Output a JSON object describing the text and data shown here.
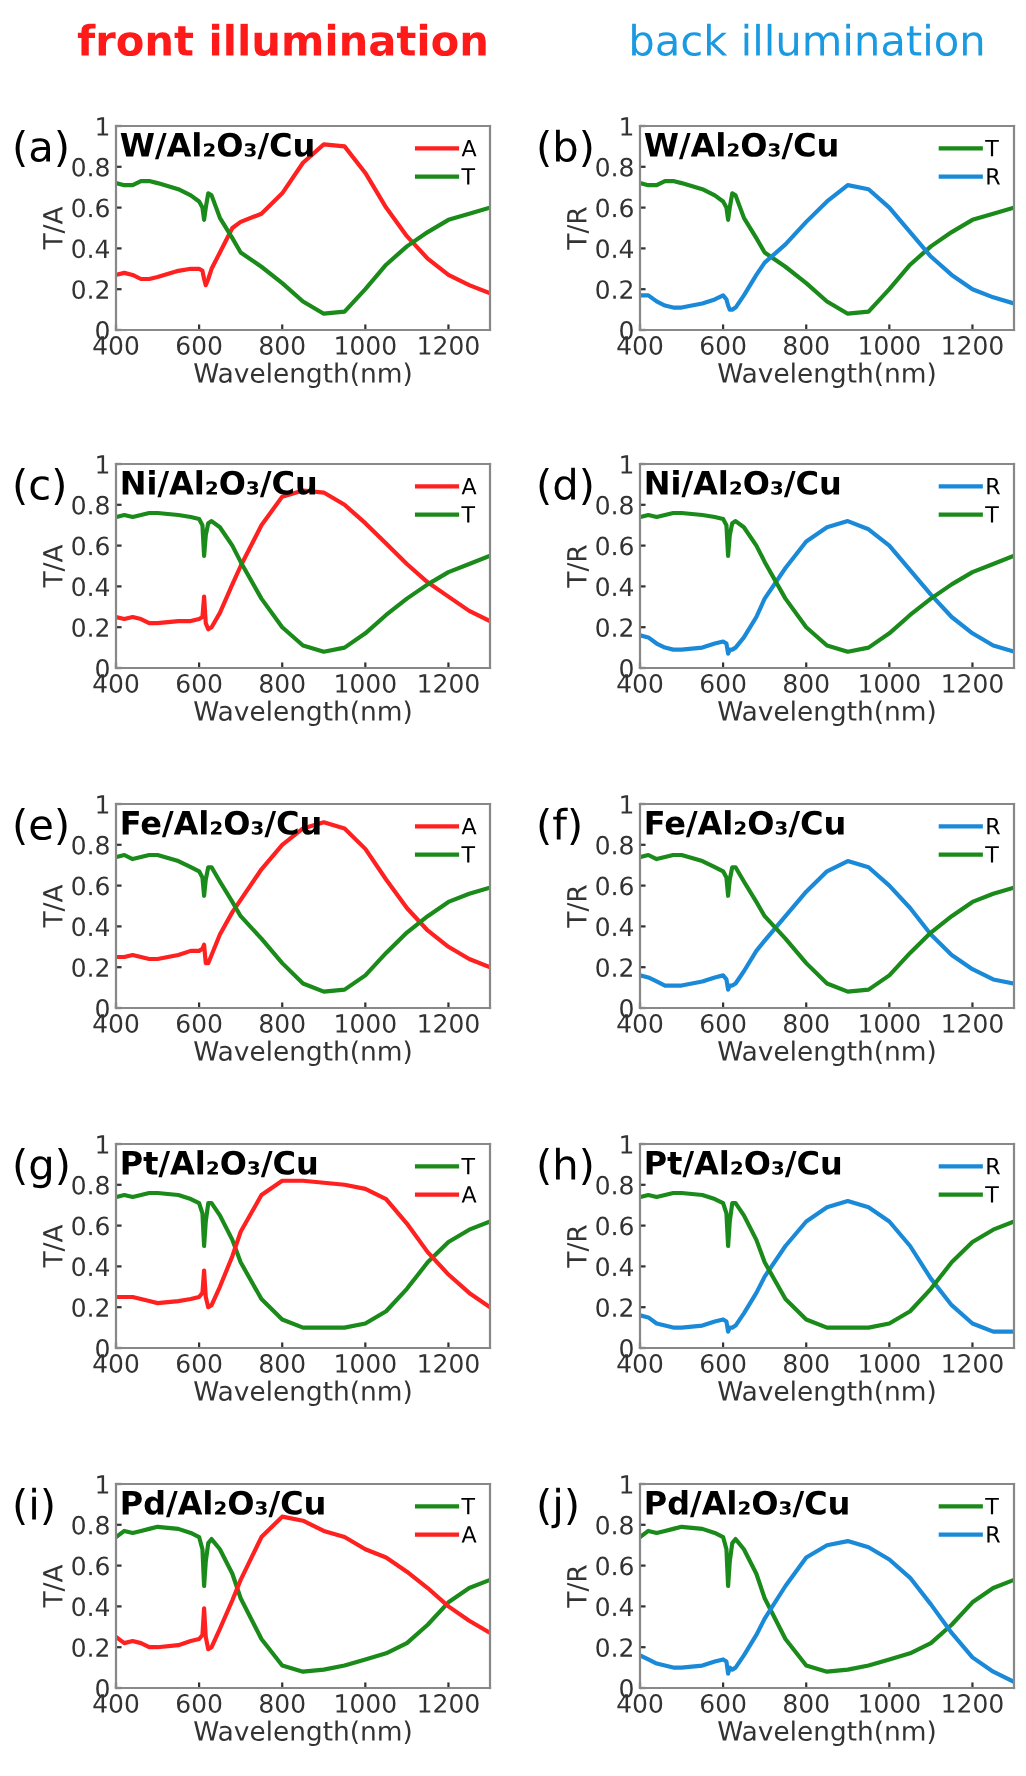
{
  "chart_data": [
    {
      "type": "line",
      "title": "(a)",
      "subtitle": "W/Al₂O₃/Cu",
      "xlabel": "Wavelength(nm)",
      "ylabel": "T/A",
      "annotations": [
        "front illumination"
      ],
      "legend": "top right",
      "xlim": [
        400,
        1300
      ],
      "ylim": [
        0,
        1
      ],
      "xticks": [
        400,
        600,
        800,
        1000,
        1200
      ],
      "yticks": [
        0,
        0.2,
        0.4,
        0.6,
        0.8,
        1
      ],
      "grid": false,
      "x": [
        400,
        420,
        440,
        460,
        480,
        500,
        550,
        580,
        600,
        608,
        612,
        616,
        622,
        630,
        650,
        680,
        700,
        750,
        800,
        850,
        900,
        950,
        1000,
        1050,
        1100,
        1150,
        1200,
        1250,
        1300
      ],
      "series": [
        {
          "name": "A",
          "color": "#ff2020",
          "values": [
            0.27,
            0.28,
            0.27,
            0.25,
            0.25,
            0.26,
            0.29,
            0.3,
            0.3,
            0.29,
            0.25,
            0.22,
            0.25,
            0.3,
            0.38,
            0.5,
            0.53,
            0.57,
            0.67,
            0.82,
            0.91,
            0.9,
            0.77,
            0.6,
            0.46,
            0.35,
            0.27,
            0.22,
            0.18
          ]
        },
        {
          "name": "T",
          "color": "#1a8a1a",
          "values": [
            0.72,
            0.71,
            0.71,
            0.73,
            0.73,
            0.72,
            0.69,
            0.66,
            0.63,
            0.6,
            0.54,
            0.6,
            0.67,
            0.66,
            0.55,
            0.45,
            0.38,
            0.31,
            0.23,
            0.14,
            0.08,
            0.09,
            0.2,
            0.32,
            0.41,
            0.48,
            0.54,
            0.57,
            0.6
          ]
        }
      ]
    },
    {
      "type": "line",
      "title": "(b)",
      "subtitle": "W/Al₂O₃/Cu",
      "xlabel": "Wavelength(nm)",
      "ylabel": "T/R",
      "annotations": [
        "back illumination"
      ],
      "legend": "top right",
      "xlim": [
        400,
        1300
      ],
      "ylim": [
        0,
        1
      ],
      "xticks": [
        400,
        600,
        800,
        1000,
        1200
      ],
      "yticks": [
        0,
        0.2,
        0.4,
        0.6,
        0.8,
        1
      ],
      "grid": false,
      "x": [
        400,
        420,
        440,
        460,
        480,
        500,
        550,
        580,
        600,
        608,
        612,
        616,
        622,
        630,
        650,
        680,
        700,
        750,
        800,
        850,
        900,
        950,
        1000,
        1050,
        1100,
        1150,
        1200,
        1250,
        1300
      ],
      "series": [
        {
          "name": "T",
          "color": "#1a8a1a",
          "values": [
            0.72,
            0.71,
            0.71,
            0.73,
            0.73,
            0.72,
            0.69,
            0.66,
            0.63,
            0.6,
            0.54,
            0.6,
            0.67,
            0.66,
            0.55,
            0.45,
            0.38,
            0.31,
            0.23,
            0.14,
            0.08,
            0.09,
            0.2,
            0.32,
            0.41,
            0.48,
            0.54,
            0.57,
            0.6
          ]
        },
        {
          "name": "R",
          "color": "#1a8ad8",
          "values": [
            0.17,
            0.17,
            0.14,
            0.12,
            0.11,
            0.11,
            0.13,
            0.15,
            0.17,
            0.15,
            0.12,
            0.1,
            0.1,
            0.11,
            0.17,
            0.27,
            0.33,
            0.42,
            0.53,
            0.63,
            0.71,
            0.69,
            0.6,
            0.48,
            0.36,
            0.27,
            0.2,
            0.16,
            0.13
          ]
        }
      ]
    },
    {
      "type": "line",
      "title": "(c)",
      "subtitle": "Ni/Al₂O₃/Cu",
      "xlabel": "Wavelength(nm)",
      "ylabel": "T/A",
      "legend": "top right",
      "xlim": [
        400,
        1300
      ],
      "ylim": [
        0,
        1
      ],
      "xticks": [
        400,
        600,
        800,
        1000,
        1200
      ],
      "yticks": [
        0,
        0.2,
        0.4,
        0.6,
        0.8,
        1
      ],
      "grid": false,
      "x": [
        400,
        420,
        440,
        460,
        480,
        500,
        550,
        580,
        600,
        608,
        612,
        616,
        622,
        630,
        650,
        680,
        700,
        750,
        800,
        850,
        900,
        950,
        1000,
        1050,
        1100,
        1150,
        1200,
        1250,
        1300
      ],
      "series": [
        {
          "name": "A",
          "color": "#ff2020",
          "values": [
            0.25,
            0.24,
            0.25,
            0.24,
            0.22,
            0.22,
            0.23,
            0.23,
            0.24,
            0.25,
            0.35,
            0.22,
            0.19,
            0.2,
            0.27,
            0.41,
            0.5,
            0.7,
            0.84,
            0.87,
            0.86,
            0.8,
            0.71,
            0.61,
            0.51,
            0.42,
            0.35,
            0.28,
            0.23
          ]
        },
        {
          "name": "T",
          "color": "#1a8a1a",
          "values": [
            0.74,
            0.75,
            0.74,
            0.75,
            0.76,
            0.76,
            0.75,
            0.74,
            0.73,
            0.7,
            0.55,
            0.65,
            0.71,
            0.72,
            0.69,
            0.6,
            0.52,
            0.34,
            0.2,
            0.11,
            0.08,
            0.1,
            0.17,
            0.26,
            0.34,
            0.41,
            0.47,
            0.51,
            0.55
          ]
        }
      ]
    },
    {
      "type": "line",
      "title": "(d)",
      "subtitle": "Ni/Al₂O₃/Cu",
      "xlabel": "Wavelength(nm)",
      "ylabel": "T/R",
      "legend": "top right",
      "xlim": [
        400,
        1300
      ],
      "ylim": [
        0,
        1
      ],
      "xticks": [
        400,
        600,
        800,
        1000,
        1200
      ],
      "yticks": [
        0,
        0.2,
        0.4,
        0.6,
        0.8,
        1
      ],
      "grid": false,
      "x": [
        400,
        420,
        440,
        460,
        480,
        500,
        550,
        580,
        600,
        608,
        612,
        616,
        622,
        630,
        650,
        680,
        700,
        750,
        800,
        850,
        900,
        950,
        1000,
        1050,
        1100,
        1150,
        1200,
        1250,
        1300
      ],
      "series": [
        {
          "name": "R",
          "color": "#1a8ad8",
          "values": [
            0.16,
            0.15,
            0.12,
            0.1,
            0.09,
            0.09,
            0.1,
            0.12,
            0.13,
            0.12,
            0.07,
            0.09,
            0.09,
            0.1,
            0.15,
            0.25,
            0.34,
            0.49,
            0.62,
            0.69,
            0.72,
            0.68,
            0.6,
            0.48,
            0.36,
            0.25,
            0.17,
            0.11,
            0.08
          ]
        },
        {
          "name": "T",
          "color": "#1a8a1a",
          "values": [
            0.74,
            0.75,
            0.74,
            0.75,
            0.76,
            0.76,
            0.75,
            0.74,
            0.73,
            0.7,
            0.55,
            0.65,
            0.71,
            0.72,
            0.69,
            0.6,
            0.52,
            0.34,
            0.2,
            0.11,
            0.08,
            0.1,
            0.17,
            0.26,
            0.34,
            0.41,
            0.47,
            0.51,
            0.55
          ]
        }
      ]
    },
    {
      "type": "line",
      "title": "(e)",
      "subtitle": "Fe/Al₂O₃/Cu",
      "xlabel": "Wavelength(nm)",
      "ylabel": "T/A",
      "legend": "top right",
      "xlim": [
        400,
        1300
      ],
      "ylim": [
        0,
        1
      ],
      "xticks": [
        400,
        600,
        800,
        1000,
        1200
      ],
      "yticks": [
        0,
        0.2,
        0.4,
        0.6,
        0.8,
        1
      ],
      "grid": false,
      "x": [
        400,
        420,
        440,
        460,
        480,
        500,
        550,
        580,
        600,
        608,
        612,
        616,
        622,
        630,
        650,
        680,
        700,
        750,
        800,
        850,
        900,
        950,
        1000,
        1050,
        1100,
        1150,
        1200,
        1250,
        1300
      ],
      "series": [
        {
          "name": "A",
          "color": "#ff2020",
          "values": [
            0.25,
            0.25,
            0.26,
            0.25,
            0.24,
            0.24,
            0.26,
            0.28,
            0.28,
            0.29,
            0.31,
            0.22,
            0.22,
            0.26,
            0.36,
            0.47,
            0.53,
            0.68,
            0.8,
            0.88,
            0.91,
            0.88,
            0.78,
            0.63,
            0.49,
            0.38,
            0.3,
            0.24,
            0.2
          ]
        },
        {
          "name": "T",
          "color": "#1a8a1a",
          "values": [
            0.74,
            0.75,
            0.73,
            0.74,
            0.75,
            0.75,
            0.72,
            0.69,
            0.67,
            0.64,
            0.55,
            0.63,
            0.69,
            0.69,
            0.62,
            0.52,
            0.45,
            0.34,
            0.22,
            0.12,
            0.08,
            0.09,
            0.16,
            0.27,
            0.37,
            0.45,
            0.52,
            0.56,
            0.59
          ]
        }
      ]
    },
    {
      "type": "line",
      "title": "(f)",
      "subtitle": "Fe/Al₂O₃/Cu",
      "xlabel": "Wavelength(nm)",
      "ylabel": "T/R",
      "legend": "top right",
      "xlim": [
        400,
        1300
      ],
      "ylim": [
        0,
        1
      ],
      "xticks": [
        400,
        600,
        800,
        1000,
        1200
      ],
      "yticks": [
        0,
        0.2,
        0.4,
        0.6,
        0.8,
        1
      ],
      "grid": false,
      "x": [
        400,
        420,
        440,
        460,
        480,
        500,
        550,
        580,
        600,
        608,
        612,
        616,
        622,
        630,
        650,
        680,
        700,
        750,
        800,
        850,
        900,
        950,
        1000,
        1050,
        1100,
        1150,
        1200,
        1250,
        1300
      ],
      "series": [
        {
          "name": "R",
          "color": "#1a8ad8",
          "values": [
            0.16,
            0.15,
            0.13,
            0.11,
            0.11,
            0.11,
            0.13,
            0.15,
            0.16,
            0.14,
            0.09,
            0.11,
            0.11,
            0.12,
            0.18,
            0.28,
            0.33,
            0.45,
            0.57,
            0.67,
            0.72,
            0.69,
            0.6,
            0.49,
            0.36,
            0.26,
            0.19,
            0.14,
            0.12
          ]
        },
        {
          "name": "T",
          "color": "#1a8a1a",
          "values": [
            0.74,
            0.75,
            0.73,
            0.74,
            0.75,
            0.75,
            0.72,
            0.69,
            0.67,
            0.64,
            0.55,
            0.63,
            0.69,
            0.69,
            0.62,
            0.52,
            0.45,
            0.34,
            0.22,
            0.12,
            0.08,
            0.09,
            0.16,
            0.27,
            0.37,
            0.45,
            0.52,
            0.56,
            0.59
          ]
        }
      ]
    },
    {
      "type": "line",
      "title": "(g)",
      "subtitle": "Pt/Al₂O₃/Cu",
      "xlabel": "Wavelength(nm)",
      "ylabel": "T/A",
      "legend": "top right",
      "xlim": [
        400,
        1300
      ],
      "ylim": [
        0,
        1
      ],
      "xticks": [
        400,
        600,
        800,
        1000,
        1200
      ],
      "yticks": [
        0,
        0.2,
        0.4,
        0.6,
        0.8,
        1
      ],
      "grid": false,
      "x": [
        400,
        420,
        440,
        460,
        480,
        500,
        550,
        580,
        600,
        608,
        612,
        616,
        622,
        630,
        650,
        680,
        700,
        750,
        800,
        850,
        900,
        950,
        1000,
        1050,
        1100,
        1150,
        1200,
        1250,
        1300
      ],
      "series": [
        {
          "name": "T",
          "color": "#1a8a1a",
          "values": [
            0.74,
            0.75,
            0.74,
            0.75,
            0.76,
            0.76,
            0.75,
            0.73,
            0.71,
            0.66,
            0.5,
            0.62,
            0.71,
            0.71,
            0.65,
            0.53,
            0.42,
            0.24,
            0.14,
            0.1,
            0.1,
            0.1,
            0.12,
            0.18,
            0.29,
            0.42,
            0.52,
            0.58,
            0.62
          ]
        },
        {
          "name": "A",
          "color": "#ff2020",
          "values": [
            0.25,
            0.25,
            0.25,
            0.24,
            0.23,
            0.22,
            0.23,
            0.24,
            0.25,
            0.27,
            0.38,
            0.25,
            0.2,
            0.21,
            0.3,
            0.45,
            0.57,
            0.75,
            0.82,
            0.82,
            0.81,
            0.8,
            0.78,
            0.73,
            0.61,
            0.47,
            0.36,
            0.27,
            0.2
          ]
        }
      ]
    },
    {
      "type": "line",
      "title": "(h)",
      "subtitle": "Pt/Al₂O₃/Cu",
      "xlabel": "Wavelength(nm)",
      "ylabel": "T/R",
      "legend": "top right",
      "xlim": [
        400,
        1300
      ],
      "ylim": [
        0,
        1
      ],
      "xticks": [
        400,
        600,
        800,
        1000,
        1200
      ],
      "yticks": [
        0,
        0.2,
        0.4,
        0.6,
        0.8,
        1
      ],
      "grid": false,
      "x": [
        400,
        420,
        440,
        460,
        480,
        500,
        550,
        580,
        600,
        608,
        612,
        616,
        622,
        630,
        650,
        680,
        700,
        750,
        800,
        850,
        900,
        950,
        1000,
        1050,
        1100,
        1150,
        1200,
        1250,
        1300
      ],
      "series": [
        {
          "name": "R",
          "color": "#1a8ad8",
          "values": [
            0.16,
            0.15,
            0.12,
            0.11,
            0.1,
            0.1,
            0.11,
            0.13,
            0.14,
            0.13,
            0.08,
            0.1,
            0.1,
            0.11,
            0.17,
            0.27,
            0.35,
            0.5,
            0.62,
            0.69,
            0.72,
            0.69,
            0.62,
            0.5,
            0.34,
            0.21,
            0.12,
            0.08,
            0.08
          ]
        },
        {
          "name": "T",
          "color": "#1a8a1a",
          "values": [
            0.74,
            0.75,
            0.74,
            0.75,
            0.76,
            0.76,
            0.75,
            0.73,
            0.71,
            0.66,
            0.5,
            0.62,
            0.71,
            0.71,
            0.65,
            0.53,
            0.42,
            0.24,
            0.14,
            0.1,
            0.1,
            0.1,
            0.12,
            0.18,
            0.29,
            0.42,
            0.52,
            0.58,
            0.62
          ]
        }
      ]
    },
    {
      "type": "line",
      "title": "(i)",
      "subtitle": "Pd/Al₂O₃/Cu",
      "xlabel": "Wavelength(nm)",
      "ylabel": "T/A",
      "legend": "top right",
      "xlim": [
        400,
        1300
      ],
      "ylim": [
        0,
        1
      ],
      "xticks": [
        400,
        600,
        800,
        1000,
        1200
      ],
      "yticks": [
        0,
        0.2,
        0.4,
        0.6,
        0.8,
        1
      ],
      "grid": false,
      "x": [
        400,
        420,
        440,
        460,
        480,
        500,
        550,
        580,
        600,
        608,
        612,
        616,
        622,
        630,
        650,
        680,
        700,
        750,
        800,
        850,
        900,
        950,
        1000,
        1050,
        1100,
        1150,
        1200,
        1250,
        1300
      ],
      "series": [
        {
          "name": "T",
          "color": "#1a8a1a",
          "values": [
            0.74,
            0.77,
            0.76,
            0.77,
            0.78,
            0.79,
            0.78,
            0.76,
            0.74,
            0.68,
            0.5,
            0.62,
            0.71,
            0.73,
            0.68,
            0.56,
            0.44,
            0.24,
            0.11,
            0.08,
            0.09,
            0.11,
            0.14,
            0.17,
            0.22,
            0.31,
            0.42,
            0.49,
            0.53
          ]
        },
        {
          "name": "A",
          "color": "#ff2020",
          "values": [
            0.25,
            0.22,
            0.23,
            0.22,
            0.2,
            0.2,
            0.21,
            0.23,
            0.24,
            0.26,
            0.39,
            0.25,
            0.19,
            0.2,
            0.29,
            0.43,
            0.53,
            0.74,
            0.84,
            0.82,
            0.77,
            0.74,
            0.68,
            0.64,
            0.57,
            0.49,
            0.4,
            0.33,
            0.27
          ]
        }
      ]
    },
    {
      "type": "line",
      "title": "(j)",
      "subtitle": "Pd/Al₂O₃/Cu",
      "xlabel": "Wavelength(nm)",
      "ylabel": "T/R",
      "legend": "top right",
      "xlim": [
        400,
        1300
      ],
      "ylim": [
        0,
        1
      ],
      "xticks": [
        400,
        600,
        800,
        1000,
        1200
      ],
      "yticks": [
        0,
        0.2,
        0.4,
        0.6,
        0.8,
        1
      ],
      "grid": false,
      "x": [
        400,
        420,
        440,
        460,
        480,
        500,
        550,
        580,
        600,
        608,
        612,
        616,
        622,
        630,
        650,
        680,
        700,
        750,
        800,
        850,
        900,
        950,
        1000,
        1050,
        1100,
        1150,
        1200,
        1250,
        1300
      ],
      "series": [
        {
          "name": "T",
          "color": "#1a8a1a",
          "values": [
            0.74,
            0.77,
            0.76,
            0.77,
            0.78,
            0.79,
            0.78,
            0.76,
            0.74,
            0.68,
            0.5,
            0.62,
            0.71,
            0.73,
            0.68,
            0.56,
            0.44,
            0.24,
            0.11,
            0.08,
            0.09,
            0.11,
            0.14,
            0.17,
            0.22,
            0.31,
            0.42,
            0.49,
            0.53
          ]
        },
        {
          "name": "R",
          "color": "#1a8ad8",
          "values": [
            0.16,
            0.14,
            0.12,
            0.11,
            0.1,
            0.1,
            0.11,
            0.13,
            0.14,
            0.13,
            0.07,
            0.1,
            0.09,
            0.1,
            0.16,
            0.26,
            0.34,
            0.5,
            0.64,
            0.7,
            0.72,
            0.69,
            0.63,
            0.54,
            0.41,
            0.27,
            0.15,
            0.08,
            0.03
          ]
        }
      ]
    }
  ]
}
